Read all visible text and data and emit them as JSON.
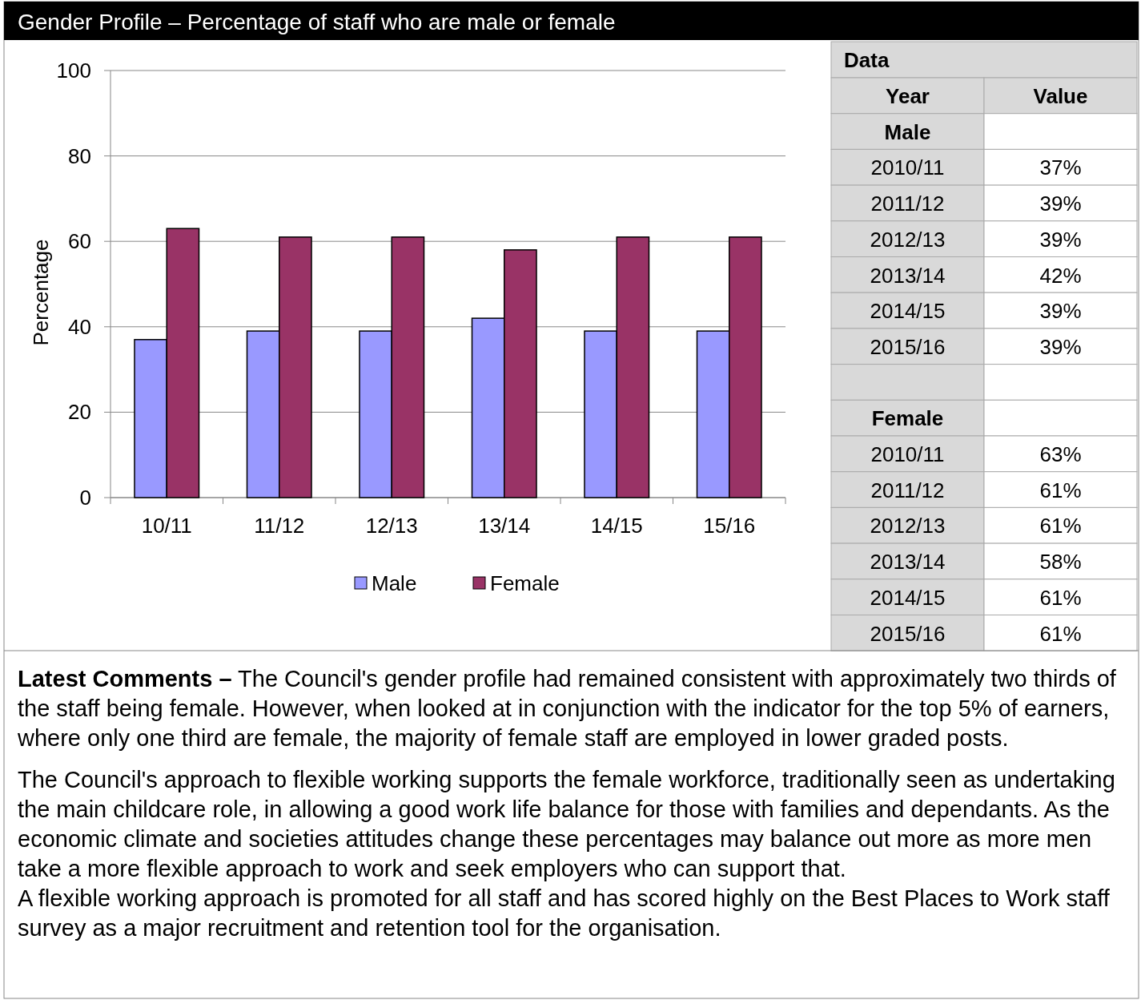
{
  "chart_data": {
    "type": "bar",
    "title": "Gender Profile – Percentage of staff who are male or female",
    "ylabel": "Percentage",
    "categories": [
      "10/11",
      "11/12",
      "12/13",
      "13/14",
      "14/15",
      "15/16"
    ],
    "series": [
      {
        "name": "Male",
        "color": "#9999ff",
        "values": [
          37,
          39,
          39,
          42,
          39,
          39
        ]
      },
      {
        "name": "Female",
        "color": "#993366",
        "values": [
          63,
          61,
          61,
          58,
          61,
          61
        ]
      }
    ],
    "ylim": [
      0,
      100
    ],
    "yticks": [
      0,
      20,
      40,
      60,
      80,
      100
    ],
    "grid": "y",
    "legend": "bottom",
    "annotations": [
      "Data",
      "Year",
      "Value",
      "2010/11",
      "2011/12",
      "2012/13",
      "2013/14",
      "2014/15",
      "2015/16",
      "Latest Comments –",
      "The Council's gender profile had remained consistent with approximately two thirds of the staff being female. However, when looked at in conjunction with the indicator for the top 5% of earners, where only one third are female, the majority of female staff are employed in lower graded posts.",
      "The Council's approach to flexible working supports the female workforce, traditionally seen as undertaking the main childcare role, in allowing a good work life balance for those with families and dependants. As the economic climate and societies attitudes change these percentages may balance out more as more men take a more flexible approach to work and seek employers who can support that.",
      "A flexible working approach is promoted for all staff and has scored highly on the Best Places to Work staff survey as a major recruitment and retention tool for the organisation.",
      "37%",
      "39%",
      "39%",
      "42%",
      "39%",
      "39%",
      "63%",
      "61%",
      "61%",
      "58%",
      "61%",
      "61%"
    ]
  }
}
